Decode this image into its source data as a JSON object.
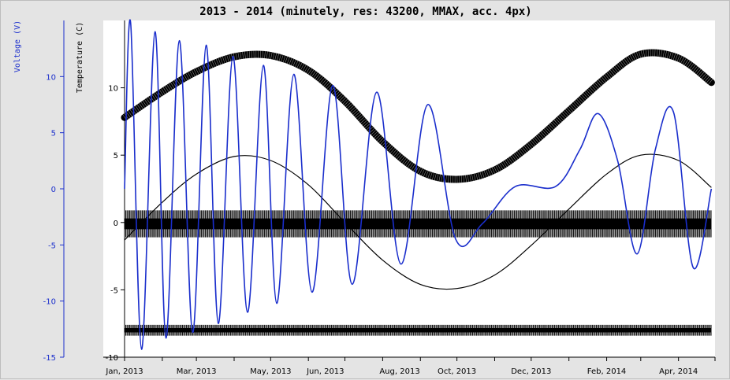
{
  "chart_data": {
    "type": "line",
    "title": "2013 - 2014 (minutely, res: 43200, MMAX, acc. 4px)",
    "x_ticks": [
      "Jan, 2013",
      "Mar, 2013",
      "May, 2013",
      "Jun, 2013",
      "Aug, 2013",
      "Oct, 2013",
      "Dec, 2013",
      "Feb, 2014",
      "Apr, 2014"
    ],
    "xlim": [
      "2013-01-01",
      "2014-05-01"
    ],
    "grid": false,
    "legend": "none",
    "axes": {
      "voltage": {
        "label": "Voltage (V)",
        "color": "#1a2ecc",
        "ylim": [
          -15,
          15
        ],
        "ticks": [
          "-15",
          "-10",
          "-5",
          "0",
          "5",
          "10"
        ]
      },
      "temperature": {
        "label": "Temperature (C)",
        "color": "#000000",
        "ylim": [
          -10,
          15
        ],
        "ticks": [
          "-10",
          "-5",
          "0",
          "5",
          "10"
        ]
      }
    },
    "series": [
      {
        "axis": "temperature",
        "color": "#000000",
        "style": "thick band",
        "x": [
          "2013-01-01",
          "2013-02-01",
          "2013-03-01",
          "2013-04-01",
          "2013-05-01",
          "2013-06-01",
          "2013-07-01",
          "2013-08-01",
          "2013-09-01",
          "2013-10-01",
          "2013-11-01",
          "2013-12-01",
          "2014-01-01",
          "2014-02-01",
          "2014-03-01",
          "2014-04-01",
          "2014-04-28"
        ],
        "y": [
          7.8,
          9.7,
          11.2,
          12.3,
          12.4,
          11.3,
          9.0,
          6.0,
          3.8,
          3.2,
          3.9,
          5.8,
          8.3,
          10.8,
          12.5,
          12.2,
          10.4
        ]
      },
      {
        "axis": "temperature",
        "color": "#000000",
        "style": "thin line",
        "x": [
          "2013-01-01",
          "2013-02-01",
          "2013-03-01",
          "2013-04-01",
          "2013-05-01",
          "2013-06-01",
          "2013-07-01",
          "2013-08-01",
          "2013-09-01",
          "2013-10-01",
          "2013-11-01",
          "2013-12-01",
          "2014-01-01",
          "2014-02-01",
          "2014-03-01",
          "2014-04-01",
          "2014-04-28"
        ],
        "y": [
          -1.3,
          1.5,
          3.6,
          4.9,
          4.6,
          2.8,
          0.0,
          -2.8,
          -4.6,
          -4.9,
          -3.9,
          -1.7,
          1.0,
          3.6,
          5.0,
          4.6,
          2.6
        ]
      },
      {
        "axis": "temperature",
        "color": "#000000",
        "style": "dense band",
        "x": [
          "2013-01-01",
          "2014-04-28"
        ],
        "y": [
          -0.1,
          -0.1
        ],
        "band": [
          -1.1,
          0.9
        ]
      },
      {
        "axis": "temperature",
        "color": "#000000",
        "style": "dense band",
        "x": [
          "2013-01-01",
          "2014-04-28"
        ],
        "y": [
          -8.0,
          -8.0
        ],
        "band": [
          -8.4,
          -7.6
        ]
      },
      {
        "axis": "voltage",
        "color": "#1a2ecc",
        "style": "line",
        "x": [
          "2013-01-01",
          "2013-01-06",
          "2013-01-15",
          "2013-01-26",
          "2013-02-04",
          "2013-02-15",
          "2013-02-26",
          "2013-03-09",
          "2013-03-19",
          "2013-03-31",
          "2013-04-12",
          "2013-04-25",
          "2013-05-06",
          "2013-05-20",
          "2013-06-04",
          "2013-06-21",
          "2013-07-07",
          "2013-07-27",
          "2013-08-16",
          "2013-09-07",
          "2013-09-30",
          "2013-10-22",
          "2013-11-18",
          "2013-12-21",
          "2014-01-10",
          "2014-01-25",
          "2014-02-10",
          "2014-02-26",
          "2014-03-13",
          "2014-03-28",
          "2014-04-13",
          "2014-04-28"
        ],
        "y": [
          0.0,
          14.8,
          -14.3,
          14.0,
          -13.3,
          13.2,
          -12.8,
          12.8,
          -12.0,
          11.8,
          -11.0,
          11.0,
          -10.2,
          10.2,
          -9.2,
          9.2,
          -8.5,
          8.6,
          -6.7,
          7.5,
          -4.5,
          -3.1,
          0.2,
          0.2,
          3.5,
          6.7,
          2.5,
          -5.8,
          3.5,
          6.8,
          -7.0,
          0.0
        ]
      }
    ]
  }
}
